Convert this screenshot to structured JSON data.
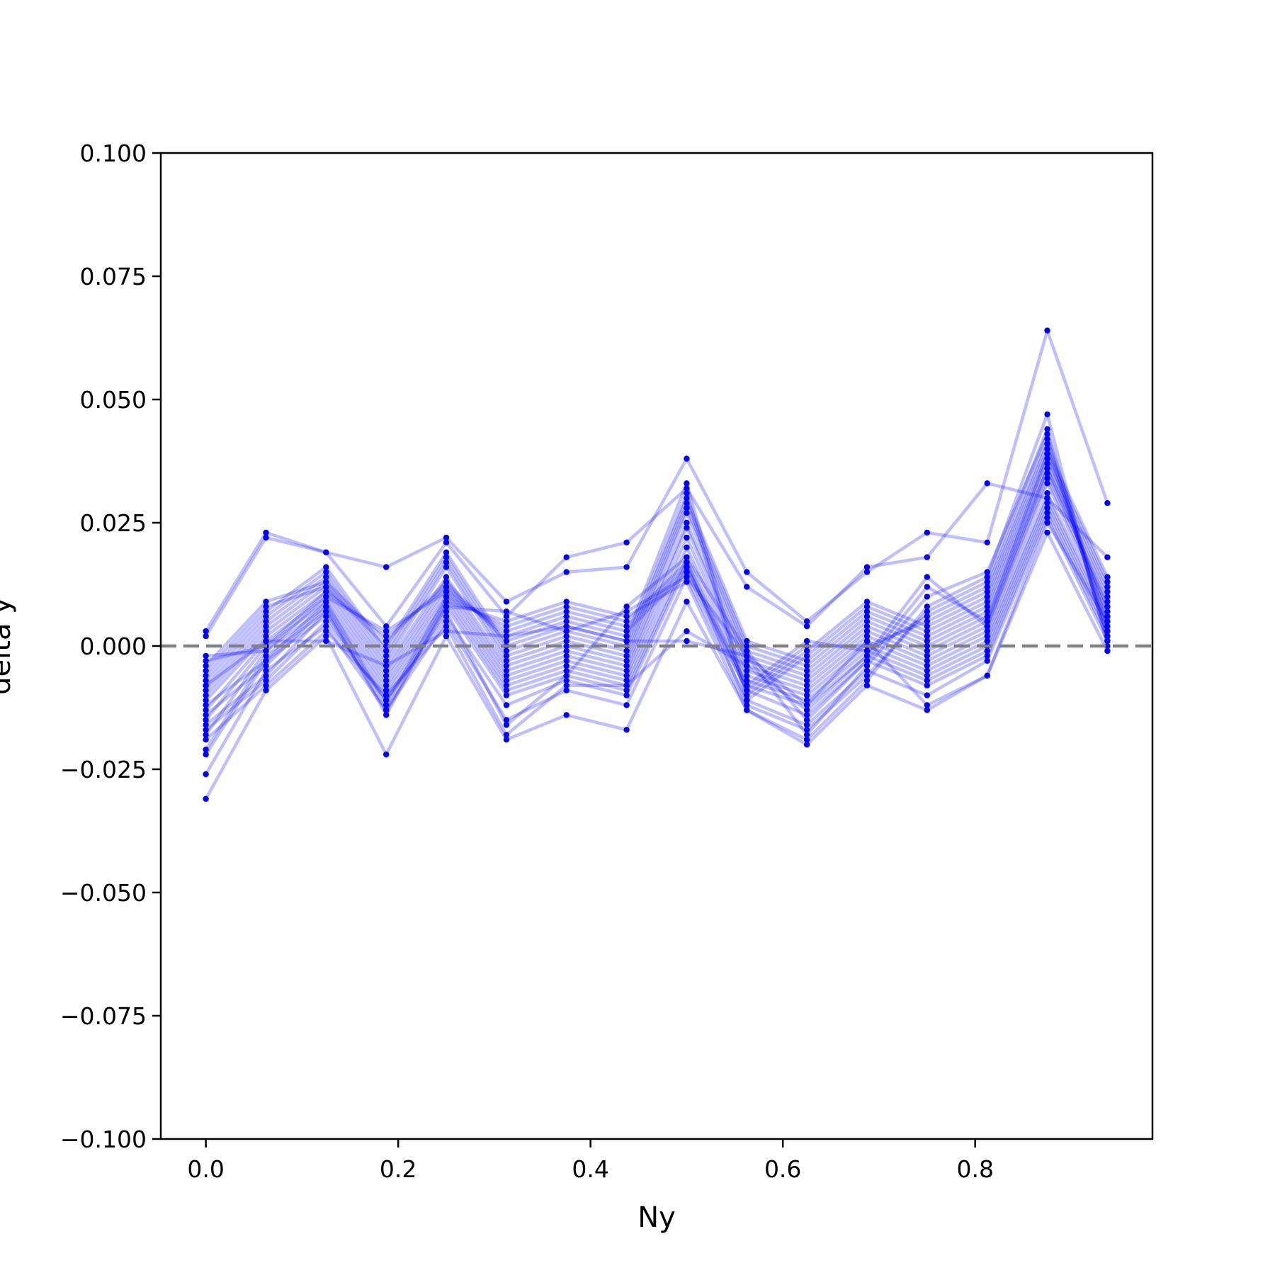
{
  "chart_data": {
    "type": "line",
    "title": "",
    "xlabel": "Ny",
    "ylabel": "delta y",
    "xlim": [
      -0.046875,
      0.984375
    ],
    "ylim": [
      -0.1,
      0.1
    ],
    "xticks": [
      "0.0",
      "0.2",
      "0.4",
      "0.6",
      "0.8"
    ],
    "xtick_values": [
      0.0,
      0.2,
      0.4,
      0.6,
      0.8
    ],
    "yticks": [
      "0.100",
      "0.075",
      "0.050",
      "0.025",
      "0.000",
      "−0.025",
      "−0.050",
      "−0.075",
      "−0.100"
    ],
    "ytick_values": [
      0.1,
      0.075,
      0.05,
      0.025,
      0.0,
      -0.025,
      -0.05,
      -0.075,
      -0.1
    ],
    "grid": false,
    "legend": "none",
    "line_color": "#0000ff",
    "reference_line": {
      "y": 0.0,
      "style": "dashed",
      "color": "#808080"
    },
    "x": [
      0.0,
      0.0625,
      0.125,
      0.1875,
      0.25,
      0.3125,
      0.375,
      0.4375,
      0.5,
      0.5625,
      0.625,
      0.6875,
      0.75,
      0.8125,
      0.875,
      0.9375
    ],
    "series": [
      {
        "values": [
          0.002,
          0.022,
          0.019,
          0.016,
          0.022,
          0.009,
          0.015,
          0.016,
          0.038,
          0.015,
          0.005,
          0.015,
          0.023,
          0.021,
          0.064,
          0.029
        ]
      },
      {
        "values": [
          0.003,
          0.023,
          0.019,
          0.004,
          0.021,
          0.006,
          0.018,
          0.021,
          0.032,
          0.012,
          0.004,
          0.016,
          0.018,
          0.033,
          0.03,
          0.018
        ]
      },
      {
        "values": [
          -0.031,
          -0.009,
          0.002,
          -0.022,
          0.002,
          -0.019,
          -0.014,
          -0.017,
          0.009,
          -0.013,
          -0.02,
          -0.008,
          -0.013,
          -0.006,
          0.023,
          -0.001
        ]
      },
      {
        "values": [
          -0.026,
          -0.005,
          0.004,
          -0.013,
          0.005,
          -0.015,
          -0.009,
          -0.012,
          0.014,
          -0.011,
          -0.016,
          -0.005,
          -0.01,
          -0.003,
          0.026,
          0.001
        ]
      },
      {
        "values": [
          -0.022,
          -0.003,
          0.006,
          -0.011,
          0.006,
          -0.012,
          -0.007,
          -0.01,
          0.016,
          -0.009,
          -0.014,
          -0.003,
          -0.008,
          -0.002,
          0.027,
          0.002
        ]
      },
      {
        "values": [
          -0.021,
          -0.002,
          0.007,
          -0.01,
          0.008,
          -0.01,
          -0.006,
          -0.009,
          0.017,
          -0.008,
          -0.012,
          -0.002,
          -0.007,
          -0.001,
          0.028,
          0.003
        ]
      },
      {
        "values": [
          -0.018,
          -0.001,
          0.008,
          -0.009,
          0.009,
          -0.009,
          -0.005,
          -0.008,
          0.018,
          -0.007,
          -0.011,
          -0.001,
          -0.006,
          0.0,
          0.029,
          0.004
        ]
      },
      {
        "values": [
          -0.015,
          0.0,
          0.009,
          -0.008,
          0.01,
          -0.008,
          -0.004,
          -0.007,
          0.02,
          -0.006,
          -0.01,
          0.0,
          -0.005,
          0.001,
          0.03,
          0.005
        ]
      },
      {
        "values": [
          -0.013,
          0.001,
          0.01,
          -0.007,
          0.011,
          -0.007,
          -0.003,
          -0.006,
          0.022,
          -0.005,
          -0.009,
          0.001,
          -0.004,
          0.002,
          0.031,
          0.006
        ]
      },
      {
        "values": [
          -0.011,
          0.002,
          0.011,
          -0.006,
          0.012,
          -0.006,
          -0.002,
          -0.005,
          0.024,
          -0.004,
          -0.008,
          0.002,
          -0.003,
          0.003,
          0.033,
          0.007
        ]
      },
      {
        "values": [
          -0.01,
          0.003,
          0.012,
          -0.005,
          0.013,
          -0.005,
          -0.001,
          -0.004,
          0.025,
          -0.003,
          -0.007,
          0.003,
          -0.002,
          0.004,
          0.034,
          0.008
        ]
      },
      {
        "values": [
          -0.009,
          0.004,
          0.013,
          -0.004,
          0.014,
          -0.004,
          0.0,
          -0.003,
          0.027,
          -0.002,
          -0.006,
          0.004,
          -0.001,
          0.005,
          0.035,
          0.009
        ]
      },
      {
        "values": [
          -0.008,
          0.005,
          0.014,
          -0.003,
          0.016,
          -0.003,
          0.001,
          -0.002,
          0.028,
          -0.001,
          -0.005,
          0.005,
          0.0,
          0.006,
          0.036,
          0.01
        ]
      },
      {
        "values": [
          -0.007,
          0.006,
          0.015,
          -0.002,
          0.017,
          -0.002,
          0.002,
          -0.001,
          0.029,
          0.0,
          -0.004,
          0.006,
          0.001,
          0.007,
          0.037,
          0.011
        ]
      },
      {
        "values": [
          -0.006,
          0.007,
          0.016,
          -0.001,
          0.018,
          -0.001,
          0.003,
          0.0,
          0.03,
          0.001,
          -0.003,
          0.007,
          0.002,
          0.008,
          0.038,
          0.012
        ]
      },
      {
        "values": [
          -0.005,
          0.008,
          0.012,
          0.0,
          0.019,
          0.0,
          0.004,
          0.001,
          0.031,
          -0.011,
          -0.002,
          0.008,
          0.003,
          0.009,
          0.039,
          0.013
        ]
      },
      {
        "values": [
          -0.004,
          0.009,
          0.013,
          0.001,
          0.013,
          0.001,
          0.005,
          0.002,
          0.033,
          -0.01,
          -0.001,
          0.009,
          0.004,
          0.01,
          0.04,
          0.014
        ]
      },
      {
        "values": [
          -0.003,
          0.0,
          0.011,
          0.002,
          0.012,
          0.002,
          0.006,
          0.003,
          0.015,
          -0.009,
          0.0,
          0.0,
          0.005,
          0.011,
          0.041,
          0.003
        ]
      },
      {
        "values": [
          -0.002,
          -0.001,
          0.01,
          0.003,
          0.011,
          0.003,
          0.007,
          0.004,
          0.016,
          -0.008,
          0.001,
          -0.001,
          0.006,
          0.012,
          0.042,
          0.002
        ]
      },
      {
        "values": [
          -0.012,
          -0.003,
          0.009,
          -0.012,
          0.01,
          0.004,
          0.008,
          0.005,
          0.017,
          -0.012,
          -0.017,
          -0.006,
          0.007,
          0.013,
          0.044,
          0.001
        ]
      },
      {
        "values": [
          -0.014,
          -0.004,
          0.008,
          -0.014,
          0.009,
          0.005,
          0.009,
          0.006,
          0.013,
          -0.013,
          -0.019,
          -0.007,
          0.008,
          0.014,
          0.047,
          0.0
        ]
      },
      {
        "values": [
          -0.016,
          -0.006,
          0.007,
          -0.013,
          0.008,
          0.007,
          0.003,
          0.007,
          0.014,
          -0.002,
          -0.018,
          -0.004,
          0.01,
          0.015,
          0.043,
          0.004
        ]
      },
      {
        "values": [
          -0.017,
          -0.007,
          0.005,
          -0.011,
          0.007,
          -0.016,
          -0.006,
          0.008,
          0.018,
          -0.001,
          -0.015,
          -0.003,
          0.012,
          0.005,
          0.039,
          0.006
        ]
      },
      {
        "values": [
          -0.019,
          -0.008,
          0.003,
          -0.01,
          0.004,
          -0.018,
          -0.008,
          -0.008,
          0.003,
          -0.004,
          -0.013,
          -0.002,
          0.014,
          0.004,
          0.036,
          0.008
        ]
      },
      {
        "values": [
          -0.008,
          0.001,
          0.001,
          -0.004,
          0.003,
          0.002,
          0.004,
          0.001,
          0.001,
          -0.002,
          -0.012,
          0.001,
          -0.012,
          -0.006,
          0.025,
          0.005
        ]
      }
    ]
  }
}
